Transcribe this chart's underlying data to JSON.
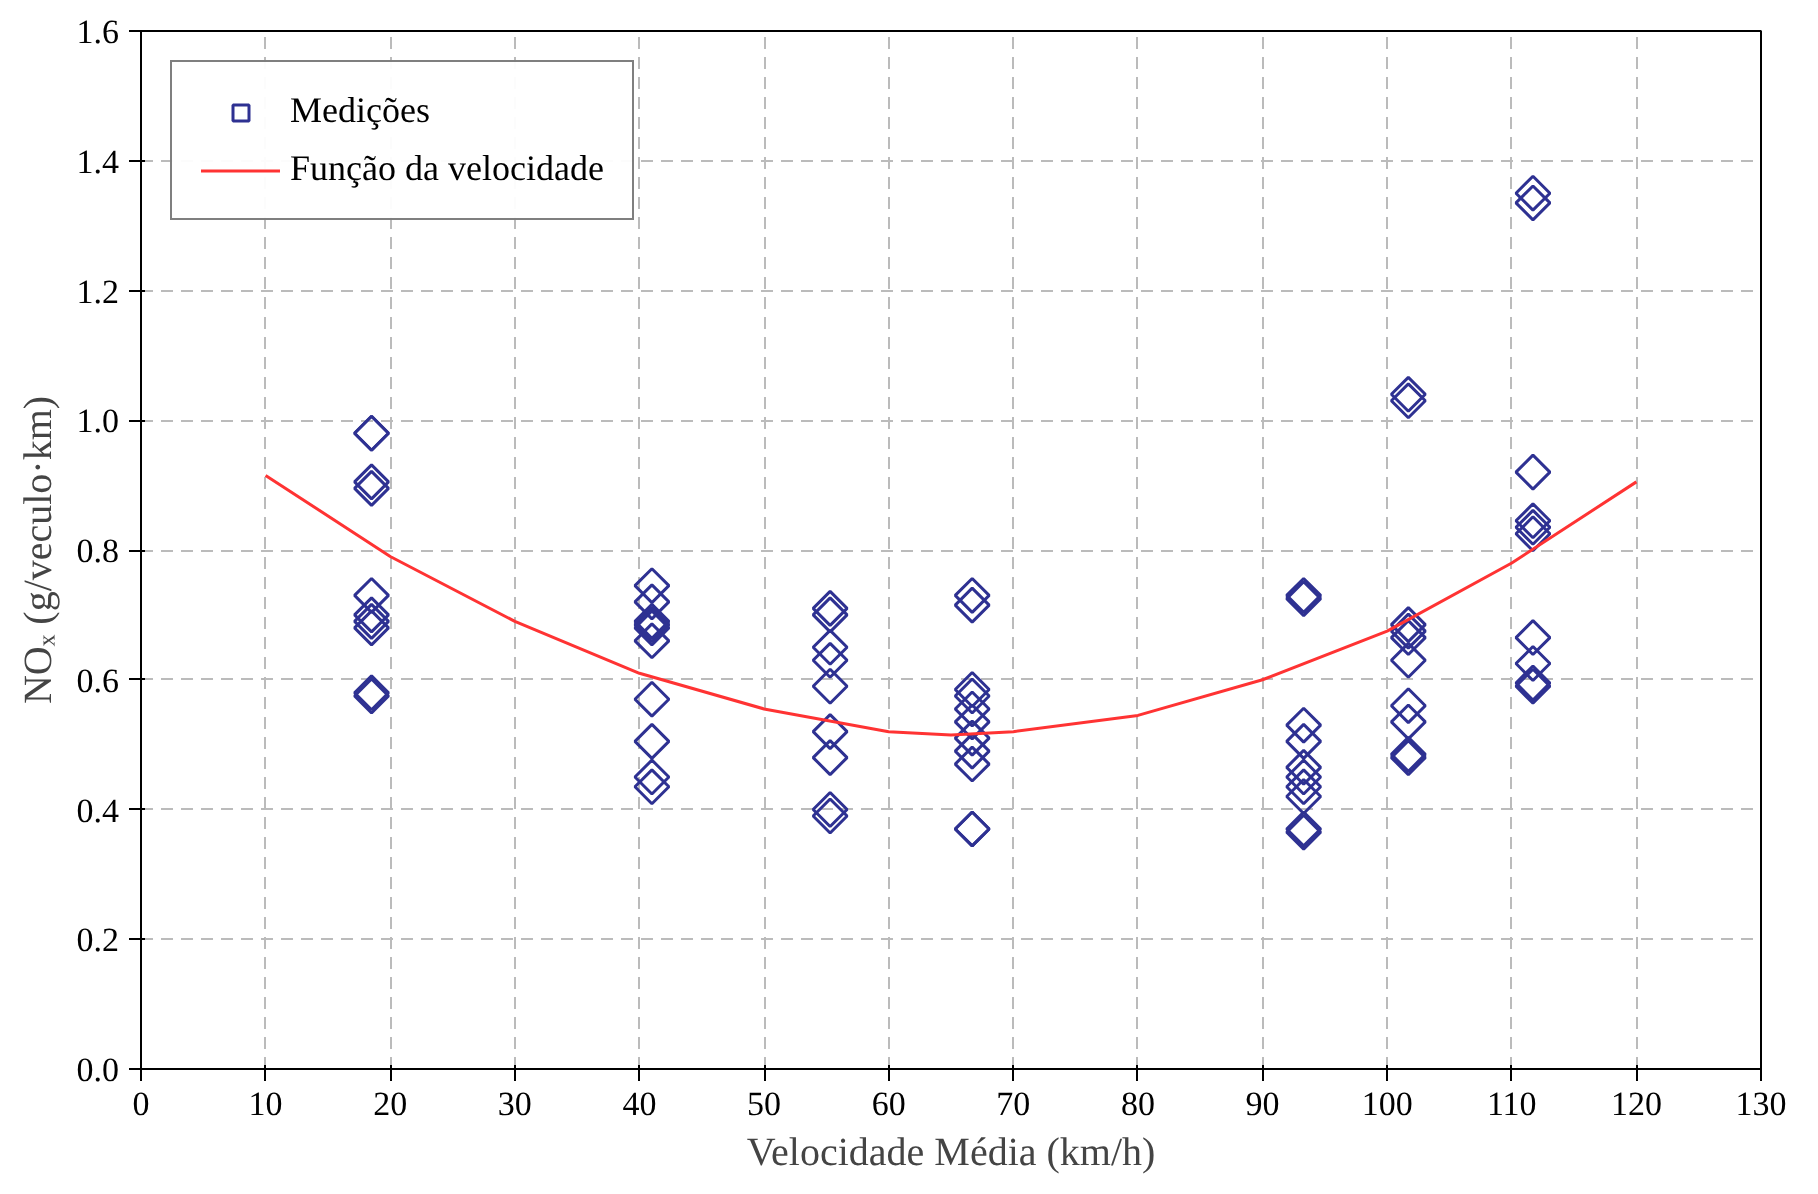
{
  "chart_data": {
    "type": "scatter",
    "xlabel": "Velocidade Média (km/h)",
    "ylabel": "NOₓ (g/veculo·km)",
    "xlim": [
      0,
      130
    ],
    "xticks": [
      0,
      10,
      20,
      30,
      40,
      50,
      60,
      70,
      80,
      90,
      100,
      110,
      120,
      130
    ],
    "ylim": [
      0,
      1.6
    ],
    "yticks": [
      {
        "value": 0,
        "label": "0.0"
      },
      0.2,
      0.4,
      0.6,
      0.8,
      {
        "value": 1,
        "label": "1.0"
      },
      1.2,
      1.4,
      1.6
    ],
    "grid": true,
    "legend": "top left",
    "series": [
      {
        "name": "Medições",
        "marker": "diamond",
        "color": "#2e3192",
        "x": [
          18.5,
          18.5,
          18.5,
          18.5,
          18.5,
          18.5,
          18.5,
          18.5,
          18.5,
          18.5,
          41,
          41,
          41,
          41,
          41,
          41,
          41,
          41,
          41,
          41,
          55.3,
          55.3,
          55.3,
          55.3,
          55.3,
          55.3,
          55.3,
          55.3,
          55.3,
          66.7,
          66.7,
          66.7,
          66.7,
          66.7,
          66.7,
          66.7,
          66.7,
          66.7,
          66.7,
          66.7,
          93.3,
          93.3,
          93.3,
          93.3,
          93.3,
          93.3,
          93.3,
          93.3,
          93.3,
          93.3,
          101.7,
          101.7,
          101.7,
          101.7,
          101.7,
          101.7,
          101.7,
          101.7,
          101.7,
          101.7,
          111.7,
          111.7,
          111.7,
          111.7,
          111.7,
          111.7,
          111.7,
          111.7,
          111.7,
          111.7
        ],
        "values": [
          0.98,
          0.98,
          0.905,
          0.895,
          0.73,
          0.7,
          0.69,
          0.68,
          0.58,
          0.575,
          0.745,
          0.72,
          0.69,
          0.685,
          0.68,
          0.66,
          0.57,
          0.505,
          0.45,
          0.435,
          0.71,
          0.7,
          0.65,
          0.63,
          0.59,
          0.52,
          0.48,
          0.4,
          0.39,
          0.73,
          0.715,
          0.585,
          0.575,
          0.555,
          0.535,
          0.51,
          0.49,
          0.47,
          0.37,
          0.37,
          0.73,
          0.725,
          0.53,
          0.505,
          0.465,
          0.45,
          0.435,
          0.42,
          0.37,
          0.365,
          1.04,
          1.03,
          0.685,
          0.675,
          0.665,
          0.63,
          0.56,
          0.535,
          0.485,
          0.48,
          1.35,
          1.335,
          0.92,
          0.845,
          0.835,
          0.825,
          0.665,
          0.625,
          0.595,
          0.59
        ]
      },
      {
        "name": "Função da velocidade",
        "type": "line",
        "line_style": "solid",
        "color": "#ff3333",
        "x": [
          10,
          20,
          30,
          40,
          50,
          60,
          65,
          70,
          80,
          90,
          100,
          110,
          120
        ],
        "values": [
          0.915,
          0.79,
          0.69,
          0.61,
          0.555,
          0.52,
          0.515,
          0.52,
          0.545,
          0.6,
          0.675,
          0.78,
          0.905
        ]
      }
    ]
  }
}
